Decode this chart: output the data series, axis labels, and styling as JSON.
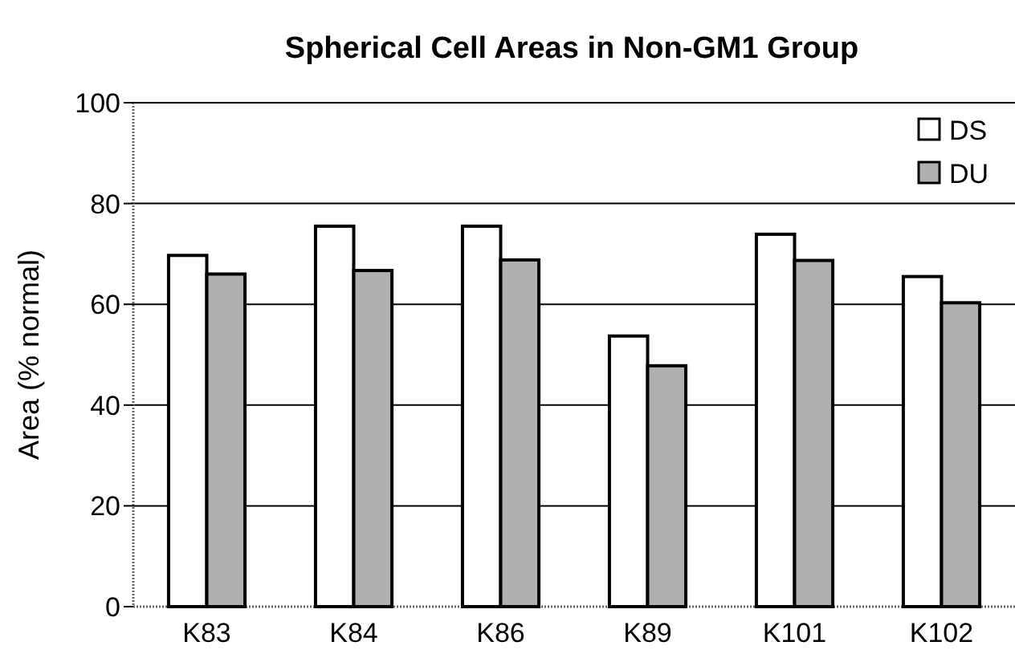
{
  "chart_data": {
    "type": "bar",
    "title": "Spherical Cell Areas in Non-GM1 Group",
    "ylabel": "Area (% normal)",
    "categories": [
      "K83",
      "K84",
      "K86",
      "K89",
      "K101",
      "K102"
    ],
    "series": [
      {
        "name": "DS",
        "color": "#ffffff",
        "values": [
          69.7,
          75.5,
          75.5,
          53.7,
          73.9,
          65.5
        ]
      },
      {
        "name": "DU",
        "color": "#b0b0b0",
        "values": [
          66.0,
          66.7,
          68.8,
          47.8,
          68.7,
          60.3
        ]
      }
    ],
    "ylim": [
      0,
      100
    ],
    "yticks": [
      0,
      20,
      40,
      60,
      80,
      100
    ],
    "grid": "y",
    "legend": "top right"
  }
}
